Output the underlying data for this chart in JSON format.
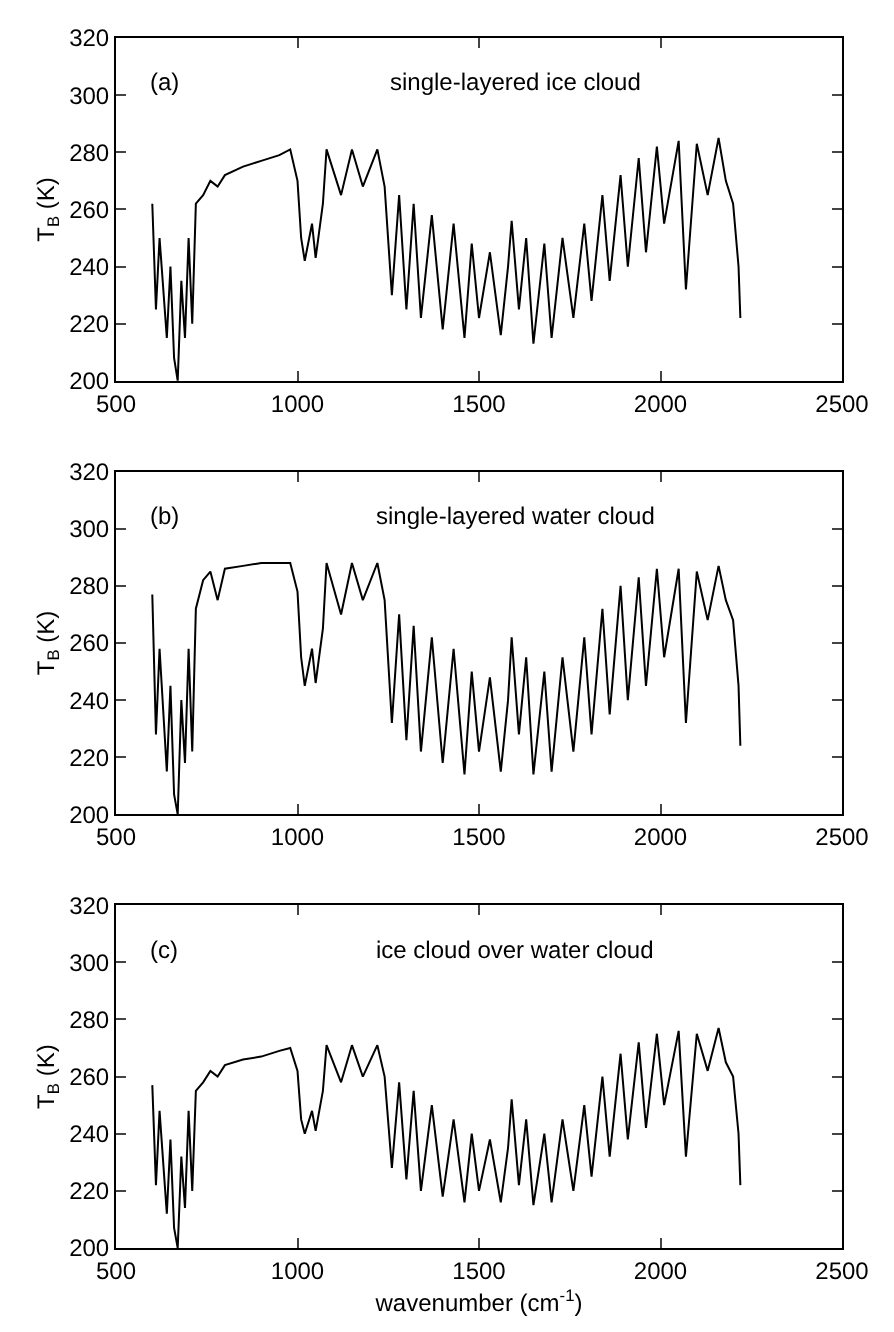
{
  "chart_data": [
    {
      "type": "line",
      "annotations": [
        "(a)",
        "single-layered ice cloud"
      ],
      "ylabel": "T$_{B}$ (K)",
      "color": "#000000",
      "xlim": [
        500,
        2500
      ],
      "xticks": [
        500,
        1000,
        1500,
        2000,
        2500
      ],
      "ylim": [
        200,
        320
      ],
      "yticks": [
        200,
        220,
        240,
        260,
        280,
        300,
        320
      ],
      "x": [
        600,
        610,
        620,
        640,
        650,
        660,
        670,
        680,
        690,
        700,
        710,
        720,
        740,
        760,
        780,
        800,
        850,
        900,
        950,
        980,
        1000,
        1010,
        1020,
        1040,
        1050,
        1070,
        1080,
        1120,
        1150,
        1180,
        1220,
        1240,
        1260,
        1280,
        1300,
        1320,
        1340,
        1370,
        1400,
        1430,
        1460,
        1480,
        1500,
        1530,
        1560,
        1580,
        1590,
        1610,
        1630,
        1650,
        1680,
        1700,
        1730,
        1760,
        1790,
        1810,
        1840,
        1860,
        1890,
        1910,
        1940,
        1960,
        1990,
        2010,
        2050,
        2070,
        2100,
        2130,
        2160,
        2180,
        2200,
        2215,
        2220
      ],
      "values": [
        262,
        225,
        250,
        215,
        240,
        208,
        200,
        235,
        215,
        250,
        220,
        262,
        265,
        270,
        268,
        272,
        275,
        277,
        279,
        281,
        270,
        250,
        242,
        255,
        243,
        262,
        281,
        265,
        281,
        268,
        281,
        268,
        230,
        265,
        225,
        262,
        222,
        258,
        218,
        255,
        215,
        248,
        222,
        245,
        216,
        240,
        256,
        225,
        250,
        213,
        248,
        215,
        250,
        222,
        255,
        228,
        265,
        235,
        272,
        240,
        278,
        245,
        282,
        255,
        284,
        232,
        283,
        265,
        285,
        270,
        262,
        240,
        222
      ]
    },
    {
      "type": "line",
      "annotations": [
        "(b)",
        "single-layered water cloud"
      ],
      "ylabel": "T$_{B}$ (K)",
      "color": "#000000",
      "xlim": [
        500,
        2500
      ],
      "xticks": [
        500,
        1000,
        1500,
        2000,
        2500
      ],
      "ylim": [
        200,
        320
      ],
      "yticks": [
        200,
        220,
        240,
        260,
        280,
        300,
        320
      ],
      "x": [
        600,
        610,
        620,
        640,
        650,
        660,
        670,
        680,
        690,
        700,
        710,
        720,
        740,
        760,
        780,
        800,
        850,
        900,
        950,
        980,
        1000,
        1010,
        1020,
        1040,
        1050,
        1070,
        1080,
        1120,
        1150,
        1180,
        1220,
        1240,
        1260,
        1280,
        1300,
        1320,
        1340,
        1370,
        1400,
        1430,
        1460,
        1480,
        1500,
        1530,
        1560,
        1580,
        1590,
        1610,
        1630,
        1650,
        1680,
        1700,
        1730,
        1760,
        1790,
        1810,
        1840,
        1860,
        1890,
        1910,
        1940,
        1960,
        1990,
        2010,
        2050,
        2070,
        2100,
        2130,
        2160,
        2180,
        2200,
        2215,
        2220
      ],
      "values": [
        277,
        228,
        258,
        215,
        245,
        207,
        200,
        240,
        218,
        258,
        222,
        272,
        282,
        285,
        275,
        286,
        287,
        288,
        288,
        288,
        278,
        255,
        245,
        258,
        246,
        265,
        288,
        270,
        288,
        275,
        288,
        275,
        232,
        270,
        226,
        266,
        222,
        262,
        218,
        258,
        214,
        250,
        222,
        248,
        215,
        240,
        262,
        228,
        255,
        214,
        250,
        215,
        255,
        222,
        262,
        228,
        272,
        235,
        280,
        240,
        283,
        245,
        286,
        255,
        286,
        232,
        285,
        268,
        287,
        275,
        268,
        245,
        224
      ]
    },
    {
      "type": "line",
      "annotations": [
        "(c)",
        "ice cloud over water cloud"
      ],
      "ylabel": "T$_{B}$ (K)",
      "xlabel": "wavenumber (cm$^{-1}$)",
      "color": "#000000",
      "xlim": [
        500,
        2500
      ],
      "xticks": [
        500,
        1000,
        1500,
        2000,
        2500
      ],
      "ylim": [
        200,
        320
      ],
      "yticks": [
        200,
        220,
        240,
        260,
        280,
        300,
        320
      ],
      "x": [
        600,
        610,
        620,
        640,
        650,
        660,
        670,
        680,
        690,
        700,
        710,
        720,
        740,
        760,
        780,
        800,
        850,
        900,
        950,
        980,
        1000,
        1010,
        1020,
        1040,
        1050,
        1070,
        1080,
        1120,
        1150,
        1180,
        1220,
        1240,
        1260,
        1280,
        1300,
        1320,
        1340,
        1370,
        1400,
        1430,
        1460,
        1480,
        1500,
        1530,
        1560,
        1580,
        1590,
        1610,
        1630,
        1650,
        1680,
        1700,
        1730,
        1760,
        1790,
        1810,
        1840,
        1860,
        1890,
        1910,
        1940,
        1960,
        1990,
        2010,
        2050,
        2070,
        2100,
        2130,
        2160,
        2180,
        2200,
        2215,
        2220
      ],
      "values": [
        257,
        222,
        248,
        212,
        238,
        207,
        200,
        232,
        214,
        248,
        220,
        255,
        258,
        262,
        260,
        264,
        266,
        267,
        269,
        270,
        262,
        245,
        240,
        248,
        241,
        255,
        271,
        258,
        271,
        260,
        271,
        260,
        228,
        258,
        224,
        255,
        220,
        250,
        218,
        245,
        216,
        240,
        220,
        238,
        216,
        235,
        252,
        222,
        245,
        215,
        240,
        216,
        245,
        220,
        250,
        225,
        260,
        232,
        268,
        238,
        272,
        242,
        275,
        250,
        276,
        232,
        275,
        262,
        277,
        265,
        260,
        240,
        222
      ]
    }
  ]
}
